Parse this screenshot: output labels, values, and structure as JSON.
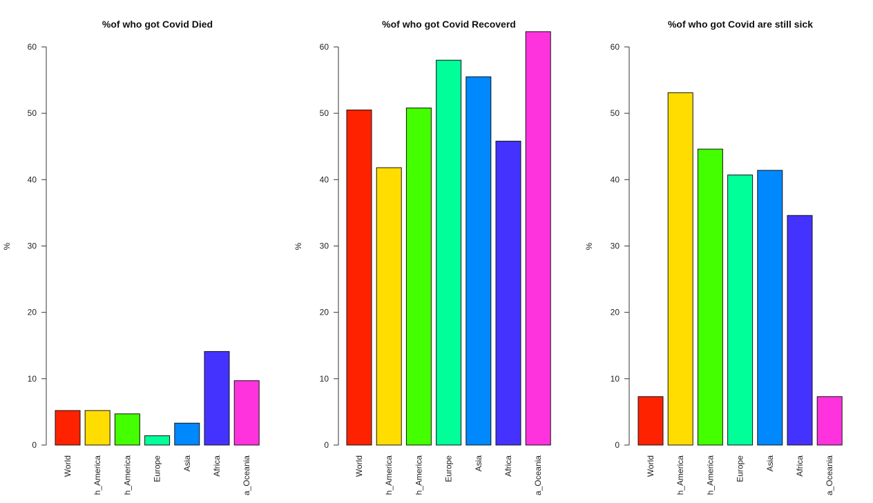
{
  "chart_data": [
    {
      "type": "bar",
      "title": "%of who got Covid Died",
      "ylabel": "%",
      "categories": [
        "World",
        "h_America",
        "h_America",
        "Europe",
        "Asia",
        "Africa",
        "a_Oceania"
      ],
      "values": [
        5.2,
        5.2,
        4.7,
        1.4,
        3.3,
        14.1,
        9.7
      ],
      "ylim": [
        0,
        60
      ],
      "yticks": [
        0,
        10,
        20,
        30,
        40,
        50,
        60
      ],
      "colors": [
        "#ff2200",
        "#ffdd00",
        "#44ff00",
        "#00ff99",
        "#0088ff",
        "#4433ff",
        "#ff33dd"
      ]
    },
    {
      "type": "bar",
      "title": "%of who got Covid Recoverd",
      "ylabel": "%",
      "categories": [
        "World",
        "h_America",
        "h_America",
        "Europe",
        "Asia",
        "Africa",
        "a_Oceania"
      ],
      "values": [
        50.5,
        41.8,
        50.8,
        58.0,
        55.5,
        45.8,
        62.3
      ],
      "ylim": [
        0,
        60
      ],
      "yticks": [
        0,
        10,
        20,
        30,
        40,
        50,
        60
      ],
      "colors": [
        "#ff2200",
        "#ffdd00",
        "#44ff00",
        "#00ff99",
        "#0088ff",
        "#4433ff",
        "#ff33dd"
      ]
    },
    {
      "type": "bar",
      "title": "%of who got Covid are still sick",
      "ylabel": "%",
      "categories": [
        "World",
        "h_America",
        "h_America",
        "Europe",
        "Asia",
        "Africa",
        "a_Oceania"
      ],
      "values": [
        7.3,
        53.1,
        44.6,
        40.7,
        41.4,
        34.6,
        7.3
      ],
      "ylim": [
        0,
        60
      ],
      "yticks": [
        0,
        10,
        20,
        30,
        40,
        50,
        60
      ],
      "colors": [
        "#ff2200",
        "#ffdd00",
        "#44ff00",
        "#00ff99",
        "#0088ff",
        "#4433ff",
        "#ff33dd"
      ]
    }
  ]
}
